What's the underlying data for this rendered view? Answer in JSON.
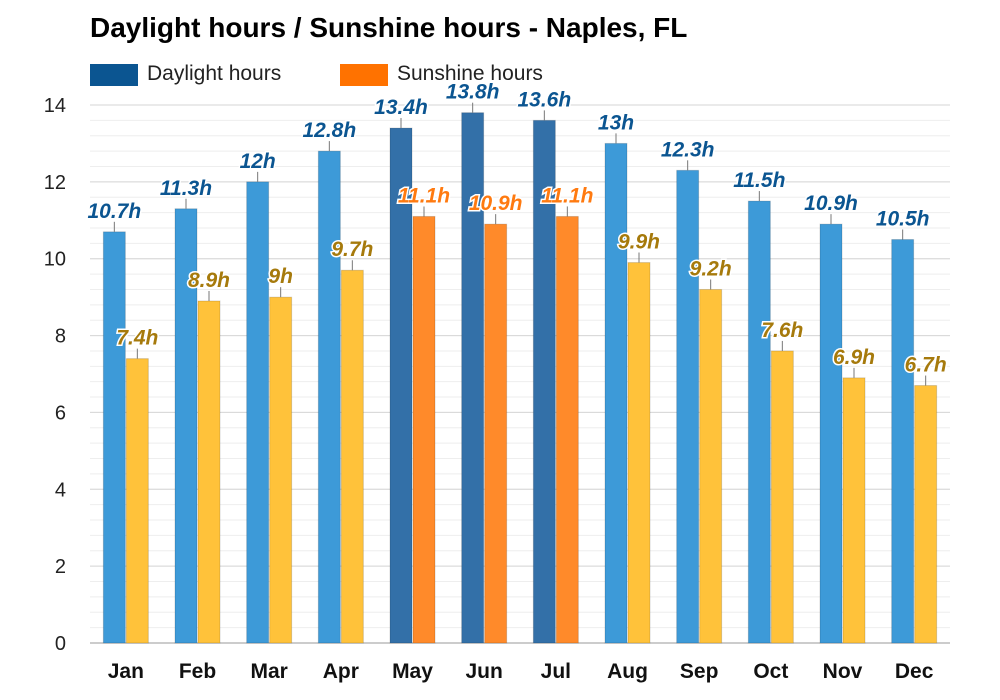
{
  "chart_data": {
    "type": "bar",
    "title": "Daylight hours / Sunshine hours - Naples, FL",
    "categories": [
      "Jan",
      "Feb",
      "Mar",
      "Apr",
      "May",
      "Jun",
      "Jul",
      "Aug",
      "Sep",
      "Oct",
      "Nov",
      "Dec"
    ],
    "series": [
      {
        "name": "Daylight hours",
        "values": [
          10.7,
          11.3,
          12,
          12.8,
          13.4,
          13.8,
          13.6,
          13,
          12.3,
          11.5,
          10.9,
          10.5
        ],
        "labels": [
          "10.7h",
          "11.3h",
          "12h",
          "12.8h",
          "13.4h",
          "13.8h",
          "13.6h",
          "13h",
          "12.3h",
          "11.5h",
          "10.9h",
          "10.5h"
        ],
        "color": "#3d9ad8",
        "summer_color": "#3370a8",
        "label_color": "#0b5591",
        "legend_color": "#0b5591"
      },
      {
        "name": "Sunshine hours",
        "values": [
          7.4,
          8.9,
          9,
          9.7,
          11.1,
          10.9,
          11.1,
          9.9,
          9.2,
          7.6,
          6.9,
          6.7
        ],
        "labels": [
          "7.4h",
          "8.9h",
          "9h",
          "9.7h",
          "11.1h",
          "10.9h",
          "11.1h",
          "9.9h",
          "9.2h",
          "7.6h",
          "6.9h",
          "6.7h"
        ],
        "color": "#ffc23a",
        "summer_color": "#ff8a2a",
        "label_color": "#a67a0c",
        "summer_label_color": "#ff7a10",
        "legend_color": "#ff7200"
      }
    ],
    "yticks": [
      0,
      2,
      4,
      6,
      8,
      10,
      12,
      14
    ],
    "ylim": [
      0,
      14
    ],
    "xlabel": "",
    "ylabel": "",
    "grid": true,
    "legend": "top-left"
  }
}
